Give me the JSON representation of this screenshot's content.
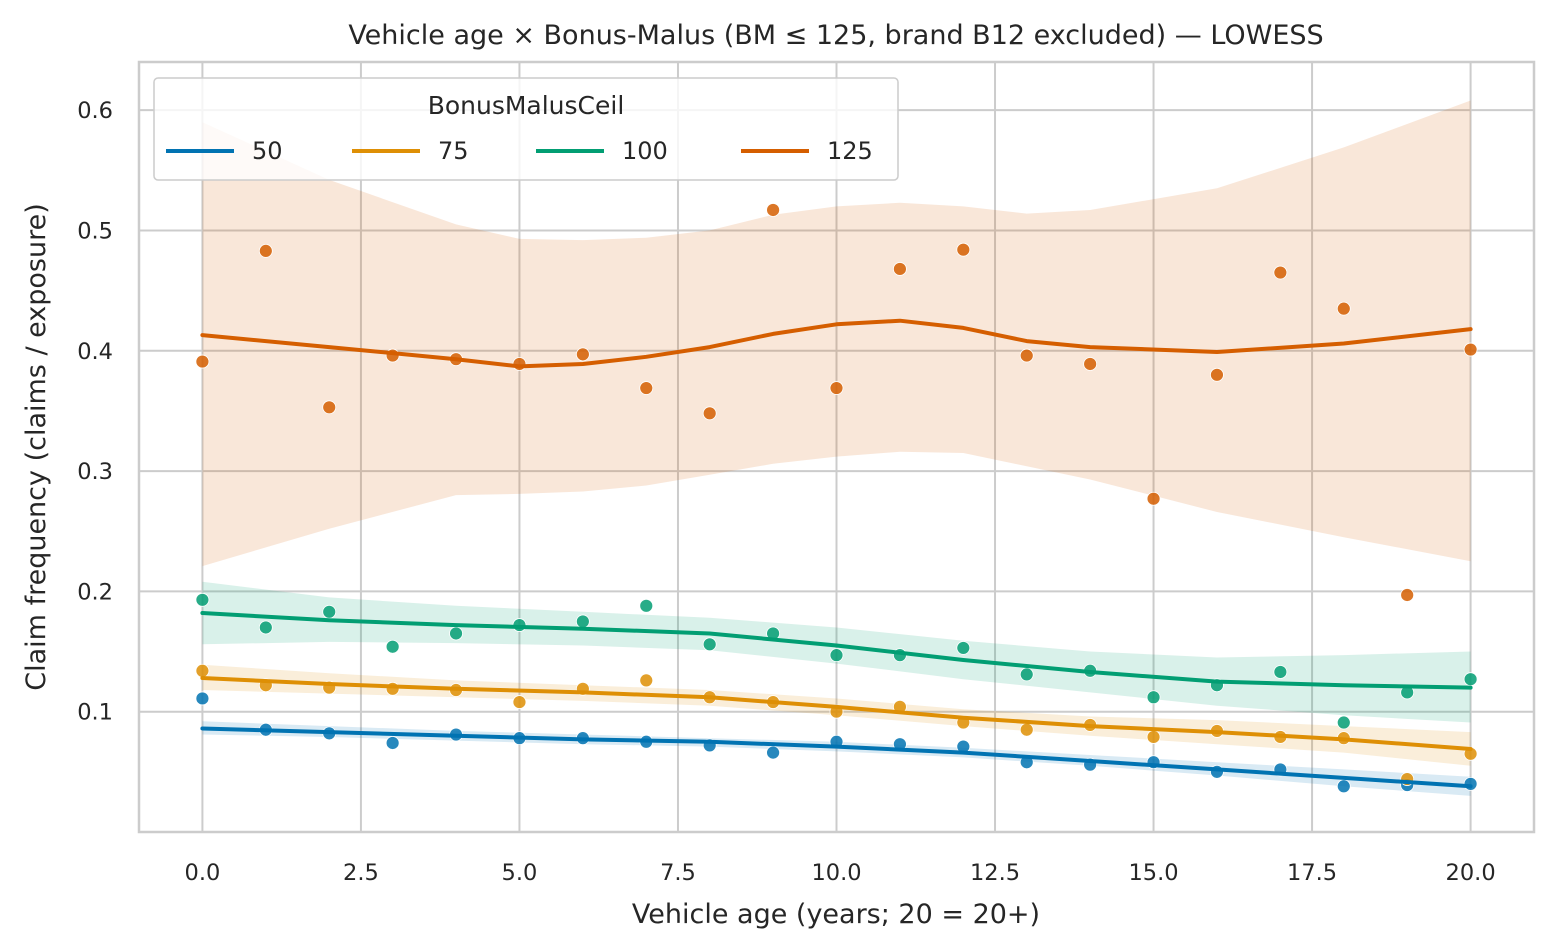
{
  "chart_data": {
    "type": "scatter",
    "title": "Vehicle age × Bonus-Malus (BM ≤ 125, brand B12 excluded) — LOWESS",
    "xlabel": "Vehicle age (years; 20 = 20+)",
    "ylabel": "Claim frequency (claims / exposure)",
    "xlim": [
      -1.0,
      21.0
    ],
    "ylim": [
      0.0,
      0.64
    ],
    "xticks": [
      0.0,
      2.5,
      5.0,
      7.5,
      10.0,
      12.5,
      15.0,
      17.5,
      20.0
    ],
    "xtick_labels": [
      "0.0",
      "2.5",
      "5.0",
      "7.5",
      "10.0",
      "12.5",
      "15.0",
      "17.5",
      "20.0"
    ],
    "yticks": [
      0.1,
      0.2,
      0.3,
      0.4,
      0.5,
      0.6
    ],
    "ytick_labels": [
      "0.1",
      "0.2",
      "0.3",
      "0.4",
      "0.5",
      "0.6"
    ],
    "grid": true,
    "legend": {
      "title": "BonusMalusCeil",
      "position": "top-left",
      "columns": 4
    },
    "x": [
      0,
      1,
      2,
      3,
      4,
      5,
      6,
      7,
      8,
      9,
      10,
      11,
      12,
      13,
      14,
      15,
      16,
      17,
      18,
      19,
      20
    ],
    "series": [
      {
        "name": "50",
        "color": "#0173b2",
        "points": [
          0.111,
          0.085,
          0.082,
          0.074,
          0.081,
          0.078,
          0.078,
          0.075,
          0.072,
          0.066,
          0.075,
          0.073,
          0.071,
          0.058,
          0.056,
          0.058,
          0.05,
          0.052,
          0.038,
          0.039,
          0.04
        ],
        "lowess_x": [
          0,
          2,
          4,
          6,
          8,
          10,
          12,
          14,
          16,
          18,
          20
        ],
        "lowess_y": [
          0.086,
          0.083,
          0.08,
          0.077,
          0.075,
          0.071,
          0.066,
          0.059,
          0.052,
          0.045,
          0.038
        ],
        "band_lower": [
          0.081,
          0.079,
          0.076,
          0.073,
          0.071,
          0.067,
          0.062,
          0.055,
          0.047,
          0.038,
          0.03
        ],
        "band_upper": [
          0.092,
          0.088,
          0.084,
          0.081,
          0.078,
          0.075,
          0.07,
          0.064,
          0.058,
          0.052,
          0.046
        ]
      },
      {
        "name": "75",
        "color": "#de8f05",
        "points": [
          0.134,
          0.122,
          0.12,
          0.119,
          0.118,
          0.108,
          0.119,
          0.126,
          0.112,
          0.108,
          0.1,
          0.104,
          0.091,
          0.085,
          0.089,
          0.079,
          0.084,
          0.079,
          0.078,
          0.044,
          0.065
        ],
        "lowess_x": [
          0,
          2,
          4,
          6,
          8,
          10,
          12,
          14,
          16,
          18,
          20
        ],
        "lowess_y": [
          0.128,
          0.123,
          0.119,
          0.116,
          0.112,
          0.104,
          0.095,
          0.088,
          0.083,
          0.077,
          0.069
        ],
        "band_lower": [
          0.118,
          0.115,
          0.112,
          0.109,
          0.105,
          0.097,
          0.088,
          0.08,
          0.073,
          0.066,
          0.055
        ],
        "band_upper": [
          0.139,
          0.132,
          0.126,
          0.122,
          0.118,
          0.111,
          0.102,
          0.096,
          0.093,
          0.088,
          0.083
        ]
      },
      {
        "name": "100",
        "color": "#029e73",
        "points": [
          0.193,
          0.17,
          0.183,
          0.154,
          0.165,
          0.172,
          0.175,
          0.188,
          0.156,
          0.165,
          0.147,
          0.147,
          0.153,
          0.131,
          0.134,
          0.112,
          0.122,
          0.133,
          0.091,
          0.116,
          0.127
        ],
        "lowess_x": [
          0,
          2,
          4,
          6,
          8,
          10,
          12,
          14,
          16,
          18,
          20
        ],
        "lowess_y": [
          0.182,
          0.176,
          0.172,
          0.169,
          0.165,
          0.155,
          0.143,
          0.133,
          0.125,
          0.122,
          0.12
        ],
        "band_lower": [
          0.156,
          0.158,
          0.157,
          0.155,
          0.151,
          0.14,
          0.127,
          0.116,
          0.105,
          0.097,
          0.091
        ],
        "band_upper": [
          0.208,
          0.195,
          0.188,
          0.183,
          0.178,
          0.17,
          0.159,
          0.15,
          0.145,
          0.147,
          0.15
        ]
      },
      {
        "name": "125",
        "color": "#d55e00",
        "points": [
          0.391,
          0.483,
          0.353,
          0.396,
          0.393,
          0.389,
          0.397,
          0.369,
          0.348,
          0.517,
          0.369,
          0.468,
          0.484,
          0.396,
          0.389,
          0.277,
          0.38,
          0.465,
          0.435,
          0.197,
          0.401
        ],
        "lowess_x": [
          0,
          2,
          4,
          5,
          6,
          7,
          8,
          9,
          10,
          11,
          12,
          13,
          14,
          16,
          18,
          20
        ],
        "lowess_y": [
          0.413,
          0.403,
          0.393,
          0.387,
          0.389,
          0.395,
          0.403,
          0.414,
          0.422,
          0.425,
          0.419,
          0.408,
          0.403,
          0.399,
          0.406,
          0.418
        ],
        "band_lower": [
          0.221,
          0.252,
          0.28,
          0.281,
          0.283,
          0.288,
          0.297,
          0.306,
          0.312,
          0.316,
          0.315,
          0.304,
          0.293,
          0.266,
          0.245,
          0.225
        ],
        "band_upper": [
          0.59,
          0.542,
          0.505,
          0.493,
          0.492,
          0.494,
          0.5,
          0.513,
          0.52,
          0.523,
          0.52,
          0.514,
          0.517,
          0.535,
          0.569,
          0.608
        ]
      }
    ]
  }
}
